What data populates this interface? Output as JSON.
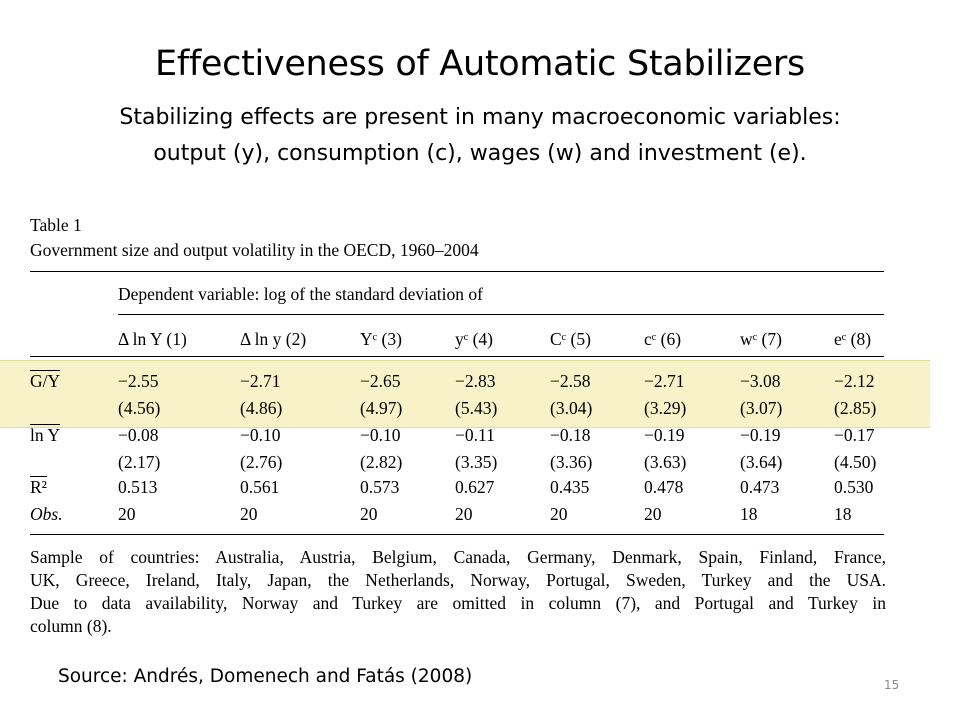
{
  "slide": {
    "title": "Effectiveness of Automatic Stabilizers",
    "subtitle_line1": "Stabilizing effects are present in many macroeconomic variables:",
    "subtitle_line2": "output (y), consumption (c), wages (w) and investment (e).",
    "source": "Source: Andrés, Domenech and Fatás (2008)",
    "page_number": "15"
  },
  "table": {
    "label": "Table 1",
    "caption": "Government size and output volatility in the OECD, 1960–2004",
    "dependent_variable": "Dependent variable: log of the standard deviation of",
    "columns": [
      "Δ ln Y (1)",
      "Δ ln y (2)",
      "Yᶜ (3)",
      "yᶜ (4)",
      "Cᶜ (5)",
      "cᶜ (6)",
      "wᶜ (7)",
      "eᶜ (8)"
    ],
    "rows": [
      {
        "label": "G/Y",
        "values": [
          "−2.55",
          "−2.71",
          "−2.65",
          "−2.83",
          "−2.58",
          "−2.71",
          "−3.08",
          "−2.12"
        ]
      },
      {
        "label": "",
        "values": [
          "(4.56)",
          "(4.86)",
          "(4.97)",
          "(5.43)",
          "(3.04)",
          "(3.29)",
          "(3.07)",
          "(2.85)"
        ]
      },
      {
        "label": "ln Y",
        "values": [
          "−0.08",
          "−0.10",
          "−0.10",
          "−0.11",
          "−0.18",
          "−0.19",
          "−0.19",
          "−0.17"
        ]
      },
      {
        "label": "",
        "values": [
          "(2.17)",
          "(2.76)",
          "(2.82)",
          "(3.35)",
          "(3.36)",
          "(3.63)",
          "(3.64)",
          "(4.50)"
        ]
      },
      {
        "label": "R²",
        "values": [
          "0.513",
          "0.561",
          "0.573",
          "0.627",
          "0.435",
          "0.478",
          "0.473",
          "0.530"
        ]
      },
      {
        "label": "Obs.",
        "values": [
          "20",
          "20",
          "20",
          "20",
          "20",
          "20",
          "18",
          "18"
        ]
      }
    ],
    "notes": [
      "Sample of countries: Australia, Austria, Belgium, Canada, Germany, Denmark, Spain, Finland, France,",
      "UK, Greece, Ireland, Italy, Japan, the Netherlands, Norway, Portugal, Sweden, Turkey and the USA.",
      "Due to data availability, Norway and Turkey are omitted in column (7), and Portugal and Turkey in",
      "column (8)."
    ],
    "highlight_color": "#f7f2c8"
  }
}
